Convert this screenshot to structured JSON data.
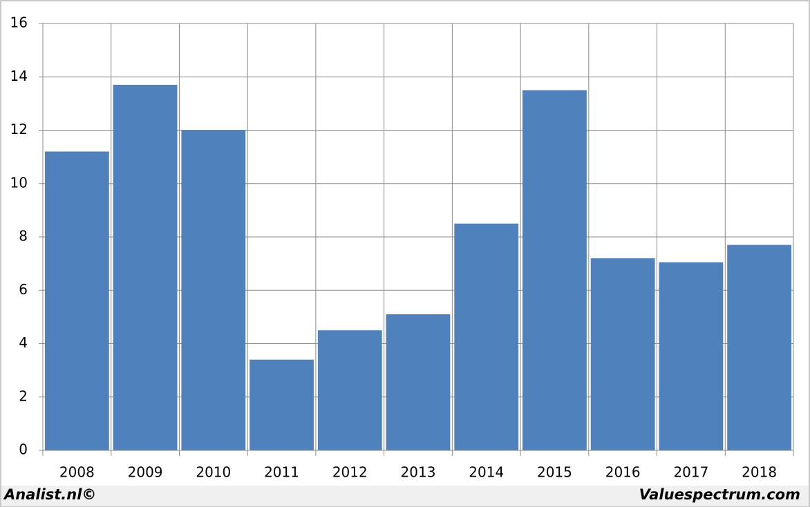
{
  "chart_data": {
    "type": "bar",
    "categories": [
      "2008",
      "2009",
      "2010",
      "2011",
      "2012",
      "2013",
      "2014",
      "2015",
      "2016",
      "2017",
      "2018"
    ],
    "values": [
      11.2,
      13.7,
      12.0,
      3.4,
      4.5,
      5.1,
      8.5,
      13.5,
      7.2,
      7.05,
      7.7
    ],
    "color": "#4f81bd",
    "ylim": [
      0,
      16
    ],
    "yticks": [
      0,
      2,
      4,
      6,
      8,
      10,
      12,
      14,
      16
    ],
    "grid": true,
    "footer_left": "Analist.nl©",
    "footer_right": "Valuespectrum.com"
  }
}
